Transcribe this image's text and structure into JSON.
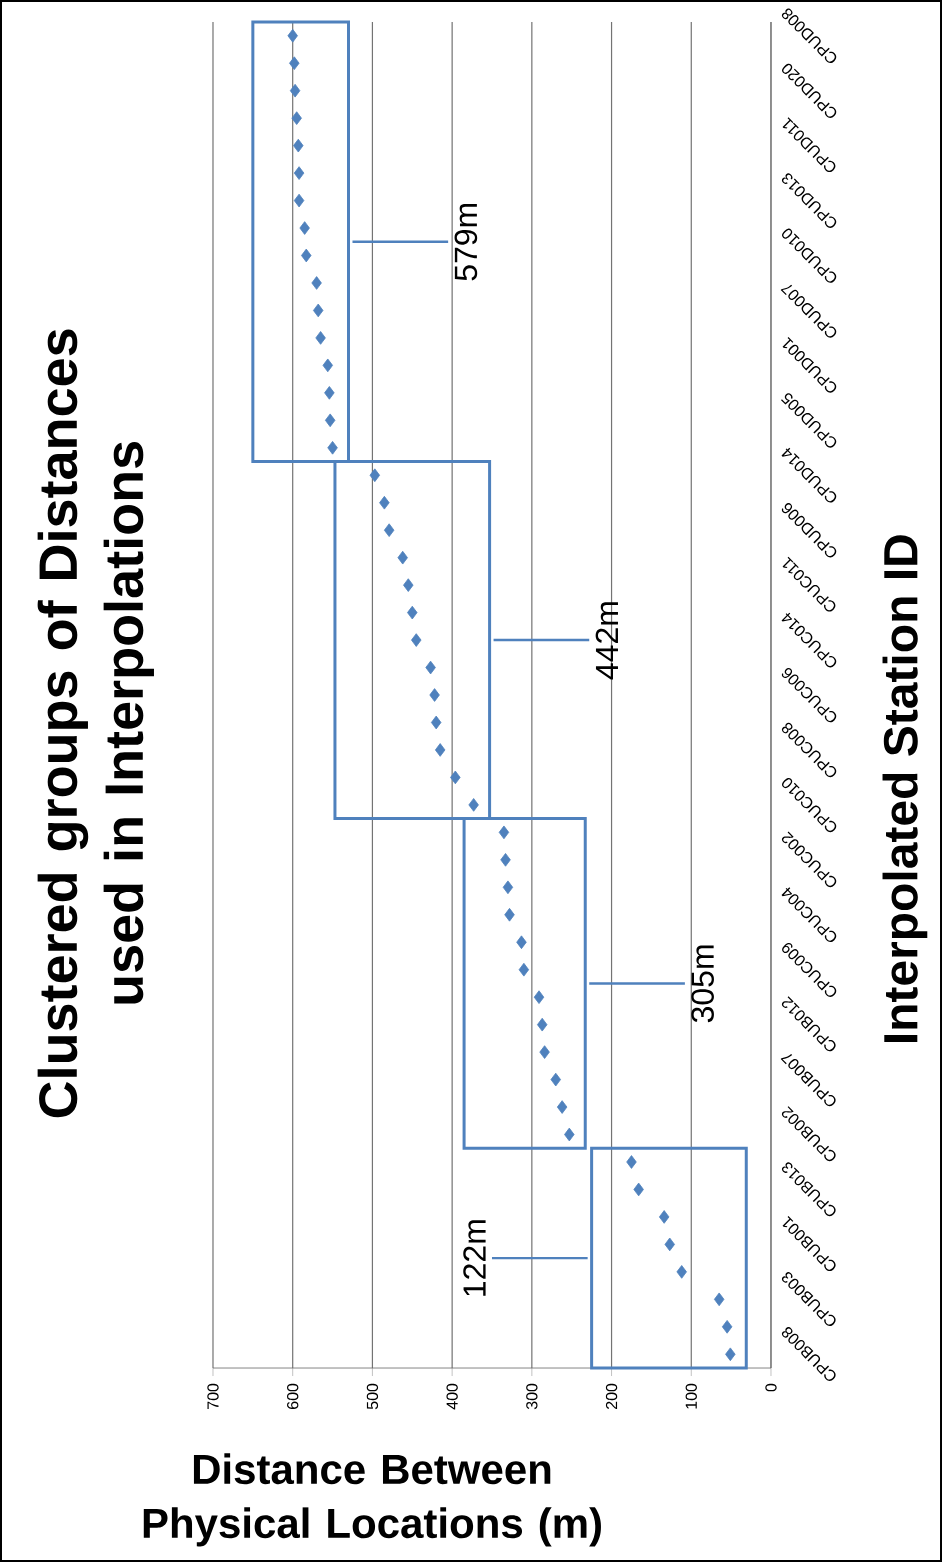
{
  "chart_data": {
    "type": "scatter",
    "orientation": "horizontal",
    "title": "Clustered groups of Distances used in Interpolations",
    "xlabel": "Distance Between Physical Locations (m)",
    "ylabel": "Interpolated Station ID",
    "categories": [
      "CPUD008",
      null,
      "CPUD020",
      null,
      "CPUD011",
      null,
      "CPUD013",
      null,
      "CPUD010",
      null,
      "CPUD007",
      null,
      "CPUD001",
      null,
      "CPUD005",
      null,
      "CPUD014",
      null,
      "CPUD006",
      null,
      "CPUC011",
      null,
      "CPUC014",
      null,
      "CPUC006",
      null,
      "CPUC008",
      null,
      "CPUC010",
      null,
      "CPUC002",
      null,
      "CPUC004",
      null,
      "CPUC009",
      null,
      "CPUB012",
      null,
      "CPUB007",
      null,
      "CPUB002",
      null,
      "CPUB013",
      null,
      "CPUB001",
      null,
      "CPUB003",
      null,
      "CPUB008"
    ],
    "series": [
      {
        "color": "#4f81bd",
        "values": [
          600,
          598,
          597,
          595,
          593,
          592,
          592,
          585,
          583,
          570,
          568,
          565,
          556,
          554,
          553,
          550,
          null,
          null,
          null,
          null,
          null,
          null,
          null,
          null,
          null,
          null,
          null,
          null,
          null,
          null,
          null,
          null,
          null,
          null,
          null,
          null,
          null,
          null,
          null,
          null,
          null,
          null,
          null,
          null,
          null,
          null,
          null,
          null,
          null
        ]
      },
      {
        "color": "#4f81bd",
        "values": [
          null,
          null,
          null,
          null,
          null,
          null,
          null,
          null,
          null,
          null,
          null,
          null,
          null,
          null,
          null,
          null,
          497,
          485,
          479,
          462,
          455,
          450,
          445,
          427,
          422,
          420,
          415,
          396,
          373,
          null,
          null,
          null,
          null,
          null,
          null,
          null,
          null,
          null,
          null,
          null,
          null,
          null,
          null,
          null,
          null,
          null,
          null,
          null,
          null
        ]
      },
      {
        "color": "#4f81bd",
        "values": [
          null,
          null,
          null,
          null,
          null,
          null,
          null,
          null,
          null,
          null,
          null,
          null,
          null,
          null,
          null,
          null,
          null,
          null,
          null,
          null,
          null,
          null,
          null,
          null,
          null,
          null,
          null,
          null,
          null,
          335,
          333,
          330,
          328,
          313,
          310,
          291,
          287,
          284,
          270,
          262,
          253,
          null,
          null,
          null,
          null,
          null,
          null,
          null,
          null
        ]
      },
      {
        "color": "#4f81bd",
        "values": [
          null,
          null,
          null,
          null,
          null,
          null,
          null,
          null,
          null,
          null,
          null,
          null,
          null,
          null,
          null,
          null,
          null,
          null,
          null,
          null,
          null,
          null,
          null,
          null,
          null,
          null,
          null,
          null,
          null,
          null,
          null,
          null,
          null,
          null,
          null,
          null,
          null,
          null,
          null,
          null,
          null,
          175,
          166,
          134,
          127,
          112,
          65,
          55,
          51
        ]
      }
    ],
    "xlim": [
      700,
      0
    ],
    "xticks": [
      700,
      600,
      500,
      400,
      300,
      200,
      100,
      0
    ],
    "annotations": [
      "579m",
      "442m",
      "305m",
      "122m"
    ],
    "grid": "x",
    "marker": "diamond"
  }
}
